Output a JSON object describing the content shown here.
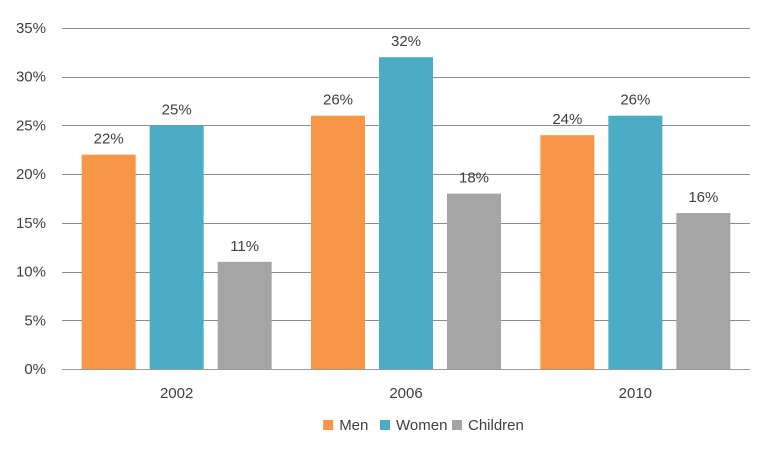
{
  "chart_data": {
    "type": "bar",
    "title": "",
    "xlabel": "",
    "ylabel": "",
    "categories": [
      "2002",
      "2006",
      "2010"
    ],
    "series": [
      {
        "name": "Men",
        "values": [
          22,
          26,
          24
        ],
        "color": "#f79646"
      },
      {
        "name": "Women",
        "values": [
          25,
          32,
          26
        ],
        "color": "#4bacc6"
      },
      {
        "name": "Children",
        "values": [
          11,
          18,
          16
        ],
        "color": "#a5a5a5"
      }
    ],
    "ylim": [
      0,
      35
    ],
    "yticks": [
      0,
      5,
      10,
      15,
      20,
      25,
      30,
      35
    ],
    "tick_format": "%",
    "grid": true,
    "legend_position": "bottom",
    "data_labels": true
  }
}
